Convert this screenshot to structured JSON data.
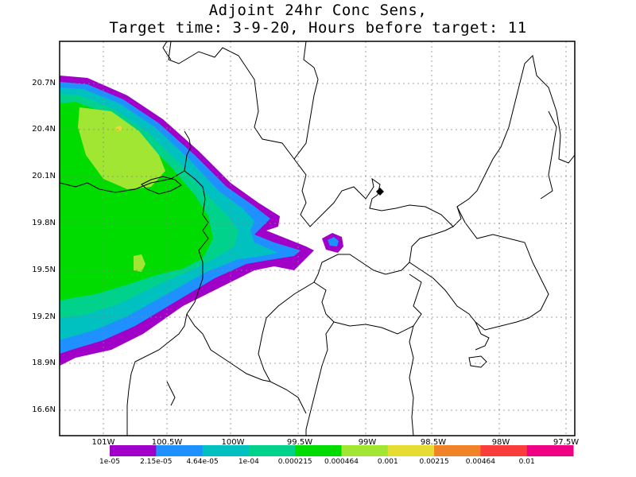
{
  "title": {
    "line1": "Adjoint 24hr Conc Sens,",
    "line2": "Target time: 3-9-20, Hours before target: 11"
  },
  "map": {
    "lat_labels": [
      "20.7N",
      "20.4N",
      "20.1N",
      "19.8N",
      "19.5N",
      "19.2N",
      "18.9N",
      "16.6N"
    ],
    "lon_labels": [
      "101W",
      "100.5W",
      "100W",
      "99.5W",
      "99W",
      "98.5W",
      "98W",
      "97.5W"
    ],
    "target_marker": "diamond-marker"
  },
  "legend": {
    "colors": [
      "#a000c8",
      "#1e90ff",
      "#00c0c0",
      "#00d28c",
      "#00dc00",
      "#a0e632",
      "#e6dc32",
      "#f08228",
      "#fa3c3c",
      "#f00082"
    ],
    "labels": [
      "1e-05",
      "2.15e-05",
      "4.64e-05",
      "1e-04",
      "0.000215",
      "0.000464",
      "0.001",
      "0.00215",
      "0.00464",
      "0.01"
    ]
  }
}
